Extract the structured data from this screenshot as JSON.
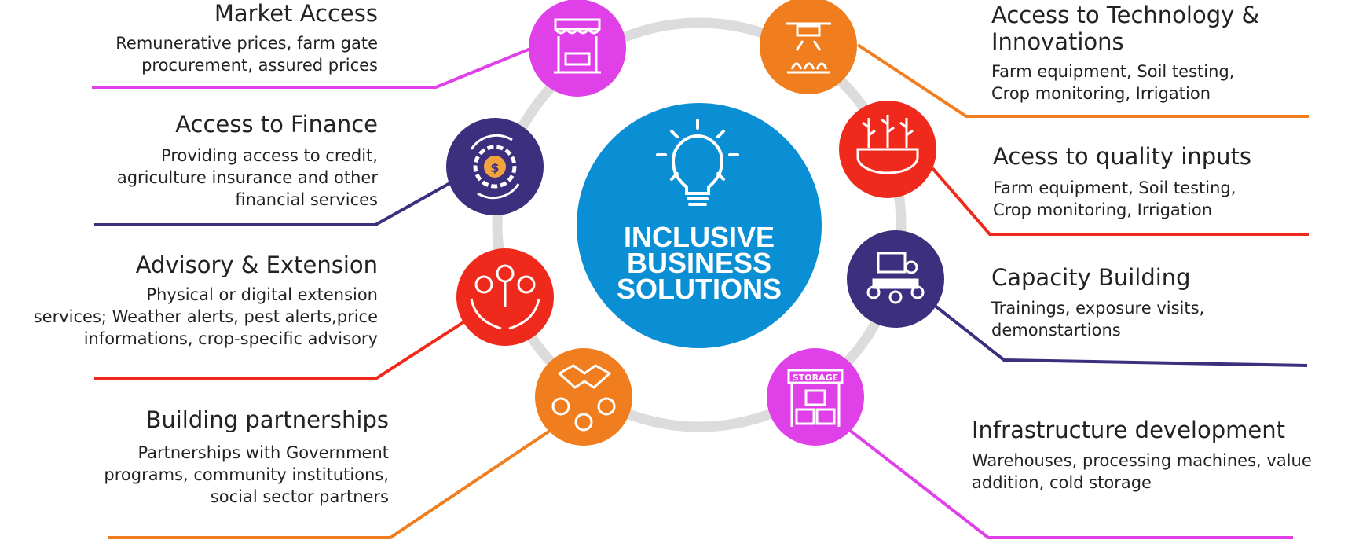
{
  "center": {
    "line1": "INCLUSIVE",
    "line2": "BUSINESS",
    "line3": "SOLUTIONS",
    "color": "#0a8fd4",
    "icon": "lightbulb-icon"
  },
  "ring_color": "#dcdcdc",
  "left_items": [
    {
      "title": "Market Access",
      "line1": "Remunerative prices, farm gate",
      "line2": "procurement, assured prices",
      "line3": "",
      "color": "#e040e8",
      "icon": "market-stall-icon"
    },
    {
      "title": "Access to Finance",
      "line1": "Providing access to credit,",
      "line2": "agriculture insurance and other",
      "line3": "financial services",
      "color": "#3b2f7e",
      "icon": "finance-gear-icon"
    },
    {
      "title": "Advisory & Extension",
      "line1": "Physical or digital extension",
      "line2": "services; Weather alerts, pest alerts,price",
      "line3": "informations, crop-specific advisory",
      "color": "#ef2a1c",
      "icon": "people-hands-icon"
    },
    {
      "title": "Building partnerships",
      "line1": "Partnerships with Government",
      "line2": "programs, community institutions,",
      "line3": "social sector partners",
      "color": "#f07d1e",
      "icon": "handshake-icon"
    }
  ],
  "right_items": [
    {
      "title": "Access to Technology &",
      "title2": "Innovations",
      "line1": "Farm equipment, Soil testing,",
      "line2": "Crop monitoring, Irrigation",
      "color": "#f07d1e",
      "icon": "drone-icon"
    },
    {
      "title": "Acess to quality inputs",
      "title2": "",
      "line1": "Farm equipment, Soil testing,",
      "line2": "Crop monitoring, Irrigation",
      "color": "#ef2a1c",
      "icon": "plants-gear-icon"
    },
    {
      "title": "Capacity Building",
      "title2": "",
      "line1": "Trainings, exposure visits,",
      "line2": "demonstartions",
      "color": "#3b2f7e",
      "icon": "training-icon"
    },
    {
      "title": "Infrastructure development",
      "title2": "",
      "line1": "Warehouses, processing machines, value",
      "line2": "addition, cold storage",
      "color": "#e040e8",
      "icon": "storage-icon",
      "badge": "STORAGE"
    }
  ]
}
